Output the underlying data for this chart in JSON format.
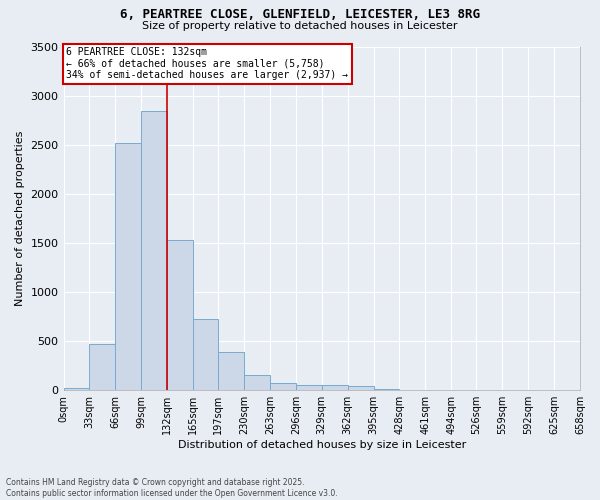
{
  "title1": "6, PEARTREE CLOSE, GLENFIELD, LEICESTER, LE3 8RG",
  "title2": "Size of property relative to detached houses in Leicester",
  "xlabel": "Distribution of detached houses by size in Leicester",
  "ylabel": "Number of detached properties",
  "bar_color": "#ccd8e8",
  "bar_edge_color": "#7aaad0",
  "background_color": "#e8edf4",
  "grid_color": "#ffffff",
  "vline_x": 132,
  "vline_color": "#cc0000",
  "annotation_text": "6 PEARTREE CLOSE: 132sqm\n← 66% of detached houses are smaller (5,758)\n34% of semi-detached houses are larger (2,937) →",
  "annotation_box_color": "#cc0000",
  "footer_text": "Contains HM Land Registry data © Crown copyright and database right 2025.\nContains public sector information licensed under the Open Government Licence v3.0.",
  "bin_edges": [
    0,
    33,
    66,
    99,
    132,
    165,
    197,
    230,
    263,
    296,
    329,
    362,
    395,
    428,
    461,
    494,
    526,
    559,
    592,
    625,
    658
  ],
  "bin_labels": [
    "0sqm",
    "33sqm",
    "66sqm",
    "99sqm",
    "132sqm",
    "165sqm",
    "197sqm",
    "230sqm",
    "263sqm",
    "296sqm",
    "329sqm",
    "362sqm",
    "395sqm",
    "428sqm",
    "461sqm",
    "494sqm",
    "526sqm",
    "559sqm",
    "592sqm",
    "625sqm",
    "658sqm"
  ],
  "bar_heights": [
    20,
    470,
    2520,
    2840,
    1530,
    730,
    390,
    155,
    75,
    55,
    50,
    40,
    15,
    5,
    5,
    0,
    0,
    0,
    0,
    0
  ],
  "ylim": [
    0,
    3500
  ],
  "yticks": [
    0,
    500,
    1000,
    1500,
    2000,
    2500,
    3000,
    3500
  ]
}
